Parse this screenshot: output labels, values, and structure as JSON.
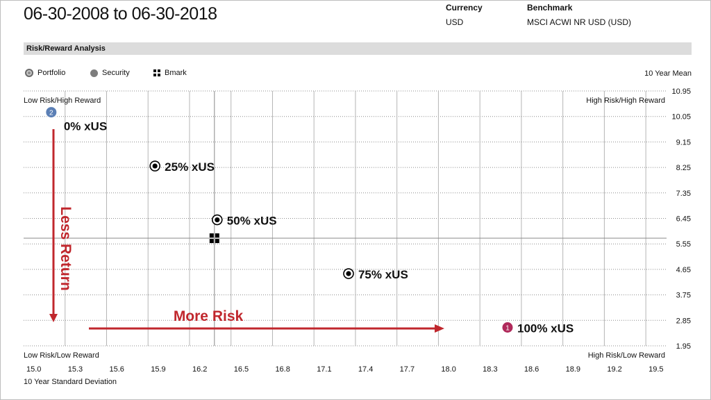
{
  "header": {
    "date_range": "06-30-2008 to 06-30-2018",
    "currency_label": "Currency",
    "currency_value": "USD",
    "benchmark_label": "Benchmark",
    "benchmark_value": "MSCI ACWI NR USD (USD)"
  },
  "section_title": "Risk/Reward Analysis",
  "legend": {
    "portfolio": "Portfolio",
    "security": "Security",
    "bmark": "Bmark",
    "mean_label": "10 Year Mean"
  },
  "colors": {
    "annotation_red": "#c0272d",
    "marker_blue": "#5b7fb5",
    "marker_pink": "#b02a5b",
    "grid": "#9a9a9a"
  },
  "chart_data": {
    "type": "scatter",
    "title": "Risk/Reward Analysis",
    "xlabel": "10 Year Standard Deviation",
    "ylabel": "10 Year Mean",
    "xlim": [
      15.0,
      19.65
    ],
    "ylim": [
      1.95,
      10.95
    ],
    "x_ticks": [
      "15.0",
      "15.3",
      "15.6",
      "15.9",
      "16.2",
      "16.5",
      "16.8",
      "17.1",
      "17.4",
      "17.7",
      "18.0",
      "18.3",
      "18.6",
      "18.9",
      "19.2",
      "19.5"
    ],
    "x_tick_values": [
      15.0,
      15.3,
      15.6,
      15.9,
      16.2,
      16.5,
      16.8,
      17.1,
      17.4,
      17.7,
      18.0,
      18.3,
      18.6,
      18.9,
      19.2,
      19.5
    ],
    "y_ticks": [
      "10.95",
      "10.05",
      "9.15",
      "8.25",
      "7.35",
      "6.45",
      "5.55",
      "4.65",
      "3.75",
      "2.85",
      "1.95"
    ],
    "y_tick_values": [
      10.95,
      10.05,
      9.15,
      8.25,
      7.35,
      6.45,
      5.55,
      4.65,
      3.75,
      2.85,
      1.95
    ],
    "quadrant_labels": {
      "top_left": "Low Risk/High Reward",
      "top_right": "High Risk/High Reward",
      "bottom_left": "Low Risk/Low Reward",
      "bottom_right": "High Risk/Low Reward"
    },
    "mean_crosshair": {
      "x": 16.38,
      "y": 5.75
    },
    "points": [
      {
        "label": "0% xUS",
        "x": 15.2,
        "y": 10.2,
        "marker": "numbered-blue",
        "badge": "2"
      },
      {
        "label": "25% xUS",
        "x": 15.95,
        "y": 8.3,
        "marker": "portfolio"
      },
      {
        "label": "50% xUS",
        "x": 16.4,
        "y": 6.4,
        "marker": "portfolio"
      },
      {
        "label": "75% xUS",
        "x": 17.35,
        "y": 4.5,
        "marker": "portfolio"
      },
      {
        "label": "100% xUS",
        "x": 18.5,
        "y": 2.6,
        "marker": "numbered-pink",
        "badge": "1"
      }
    ],
    "benchmark": {
      "label": "Bmark",
      "x": 16.38,
      "y": 5.75
    },
    "annotations": {
      "vertical_arrow": "Less Return",
      "horizontal_arrow": "More Risk"
    }
  }
}
